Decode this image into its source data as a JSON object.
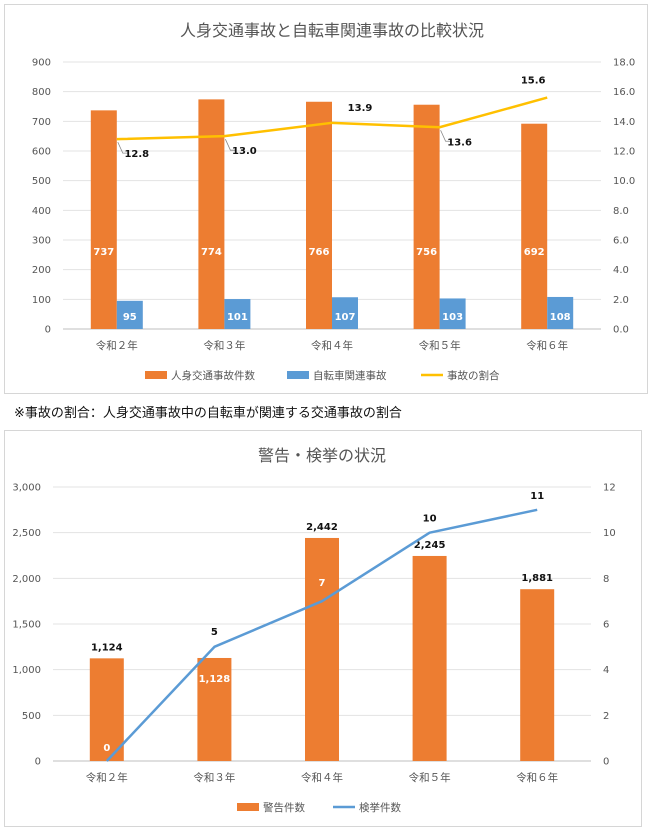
{
  "chart_data": [
    {
      "type": "bar",
      "title": "人身交通事故と自転車関連事故の比較状況",
      "categories": [
        "令和２年",
        "令和３年",
        "令和４年",
        "令和５年",
        "令和６年"
      ],
      "ylim": [
        0,
        900
      ],
      "y_ticks": [
        "0",
        "100",
        "200",
        "300",
        "400",
        "500",
        "600",
        "700",
        "800",
        "900"
      ],
      "y2lim": [
        0,
        18
      ],
      "y2_ticks": [
        "0.0",
        "2.0",
        "4.0",
        "6.0",
        "8.0",
        "10.0",
        "12.0",
        "14.0",
        "16.0",
        "18.0"
      ],
      "series": [
        {
          "name": "人身交通事故件数",
          "type": "bar",
          "axis": "left",
          "color": "#ED7D31",
          "values": [
            737,
            774,
            766,
            756,
            692
          ],
          "labels": [
            "737",
            "774",
            "766",
            "756",
            "692"
          ]
        },
        {
          "name": "自転車関連事故",
          "type": "bar",
          "axis": "left",
          "color": "#5B9BD5",
          "values": [
            95,
            101,
            107,
            103,
            108
          ],
          "labels": [
            "95",
            "101",
            "107",
            "103",
            "108"
          ]
        },
        {
          "name": "事故の割合",
          "type": "line",
          "axis": "right",
          "color": "#FFC000",
          "values": [
            12.8,
            13.0,
            13.9,
            13.6,
            15.6
          ],
          "labels": [
            "12.8",
            "13.0",
            "13.9",
            "13.6",
            "15.6"
          ]
        }
      ],
      "grid": true,
      "legend": "bottom"
    },
    {
      "type": "bar",
      "title": "警告・検挙の状況",
      "categories": [
        "令和２年",
        "令和３年",
        "令和４年",
        "令和５年",
        "令和６年"
      ],
      "ylim": [
        0,
        3000
      ],
      "y_ticks": [
        "0",
        "500",
        "1,000",
        "1,500",
        "2,000",
        "2,500",
        "3,000"
      ],
      "y2lim": [
        0,
        12
      ],
      "y2_ticks": [
        "0",
        "2",
        "4",
        "6",
        "8",
        "10",
        "12"
      ],
      "series": [
        {
          "name": "警告件数",
          "type": "bar",
          "axis": "left",
          "color": "#ED7D31",
          "values": [
            1124,
            1128,
            2442,
            2245,
            1881
          ],
          "labels": [
            "1,124",
            "1,128",
            "2,442",
            "2,245",
            "1,881"
          ]
        },
        {
          "name": "検挙件数",
          "type": "line",
          "axis": "right",
          "color": "#5B9BD5",
          "values": [
            0,
            5,
            7,
            10,
            11
          ],
          "labels": [
            "0",
            "5",
            "7",
            "10",
            "11"
          ]
        }
      ],
      "grid": true,
      "legend": "bottom"
    }
  ],
  "note": "※事故の割合：人身交通事故中の自転車が関連する交通事故の割合"
}
